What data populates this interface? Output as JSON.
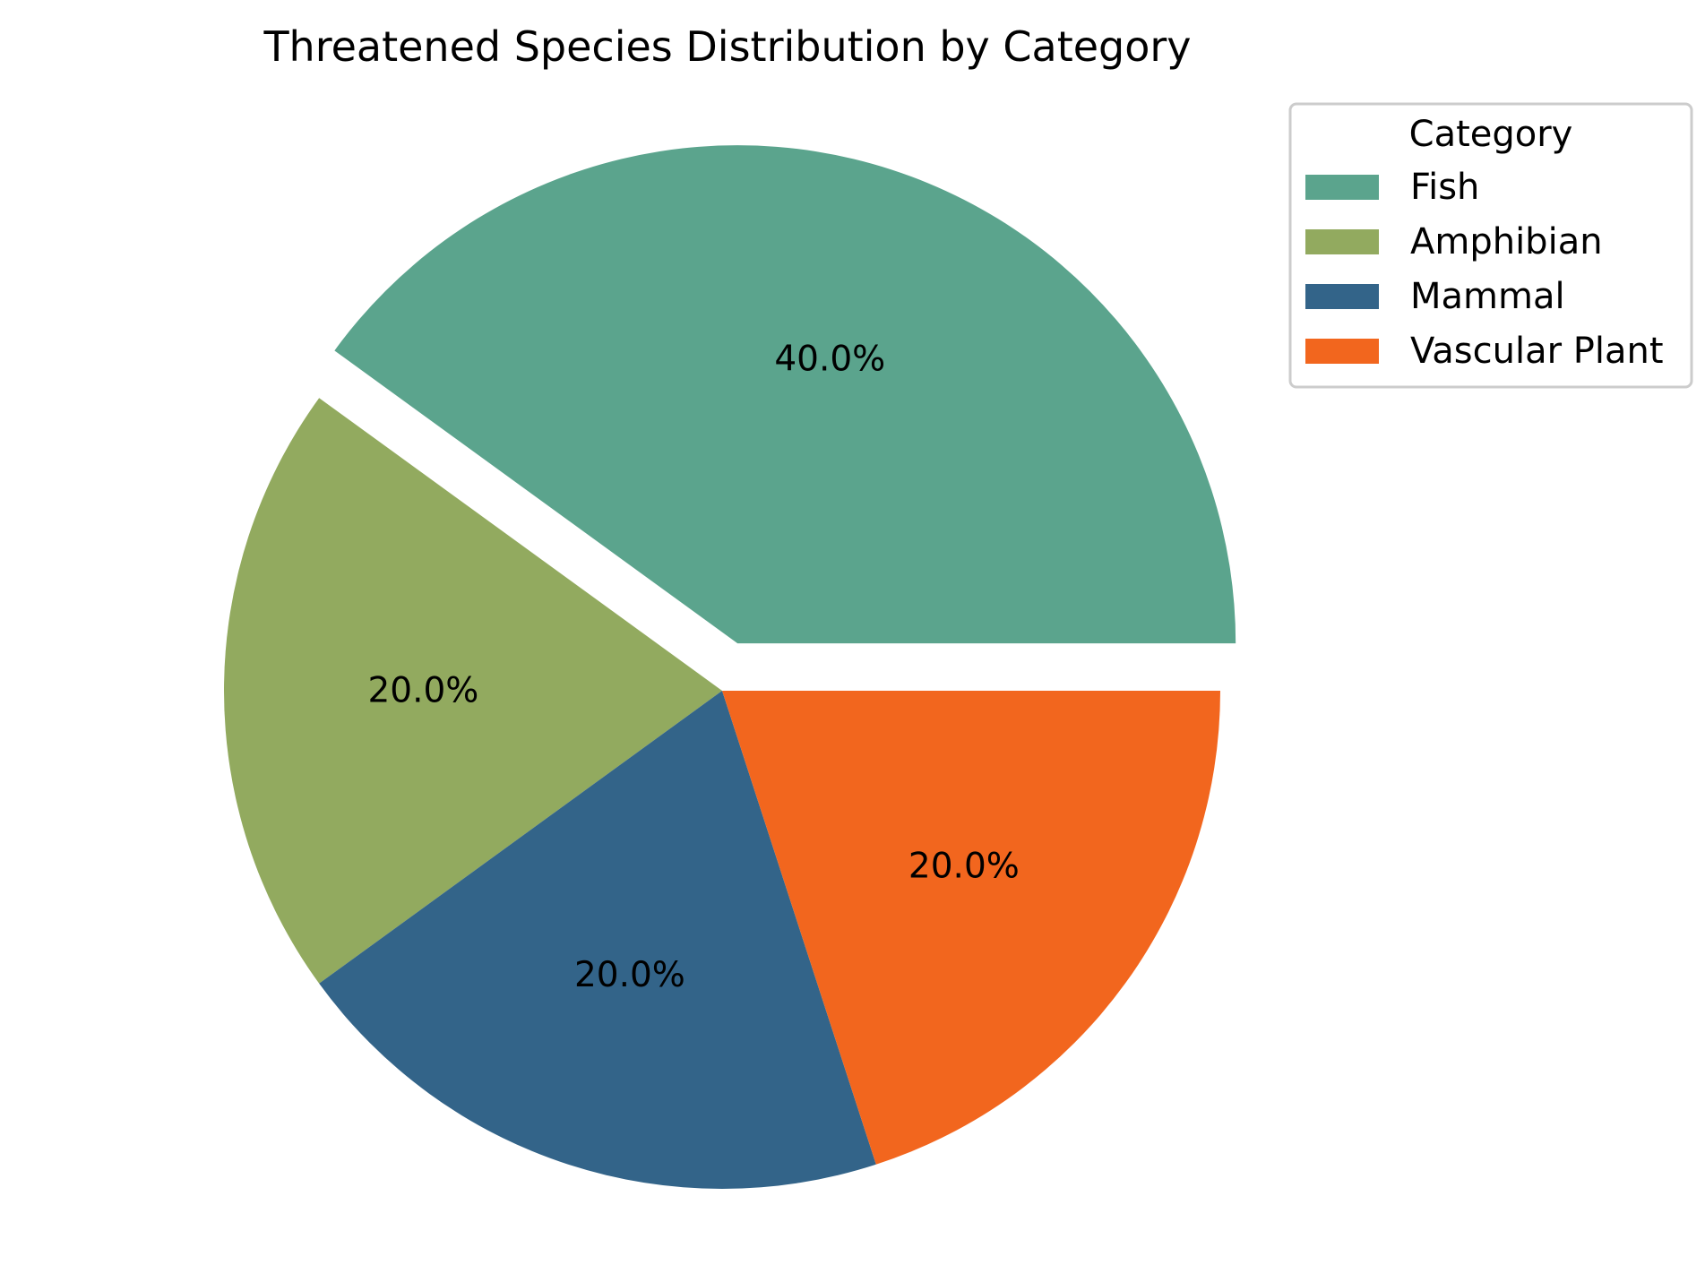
{
  "chart_data": {
    "type": "pie",
    "title": "Threatened Species Distribution by Category",
    "categories": [
      "Fish",
      "Amphibian",
      "Mammal",
      "Vascular Plant"
    ],
    "values": [
      40.0,
      20.0,
      20.0,
      20.0
    ],
    "labels": [
      "40.0%",
      "20.0%",
      "20.0%",
      "20.0%"
    ],
    "colors": [
      "#5ba48d",
      "#92aa5f",
      "#336489",
      "#f2661e"
    ],
    "explode": [
      0.1,
      0,
      0,
      0
    ],
    "start_angle_deg": 0,
    "direction": "counterclockwise",
    "legend": {
      "title": "Category",
      "placement": "outside-top-right"
    }
  }
}
